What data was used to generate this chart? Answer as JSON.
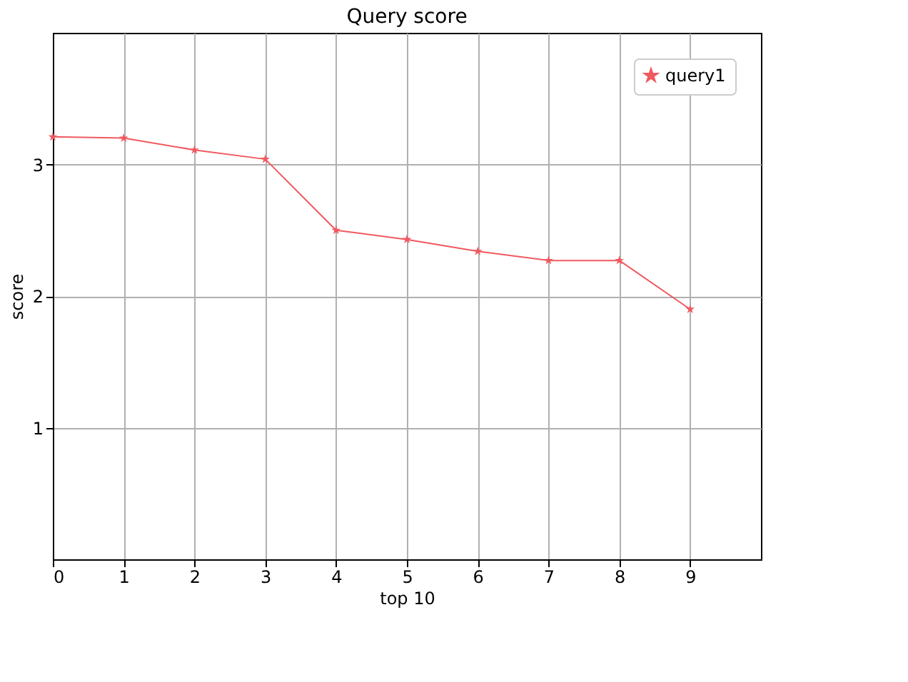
{
  "chart_data": {
    "type": "line",
    "title": "Query score",
    "xlabel": "top 10",
    "ylabel": "score",
    "x": [
      0,
      1,
      2,
      3,
      4,
      5,
      6,
      7,
      8,
      9
    ],
    "series": [
      {
        "name": "query1",
        "color": "#f0595f",
        "values": [
          3.21,
          3.2,
          3.11,
          3.04,
          2.5,
          2.43,
          2.34,
          2.27,
          2.27,
          1.9
        ]
      }
    ],
    "xlim": [
      0,
      10
    ],
    "xticks": [
      0,
      1,
      2,
      3,
      4,
      5,
      6,
      7,
      8,
      9
    ],
    "ylim": [
      0,
      4
    ],
    "yticks": [
      1,
      2,
      3
    ],
    "grid": true,
    "legend": "top right",
    "marker": "star",
    "line_style": "solid"
  }
}
